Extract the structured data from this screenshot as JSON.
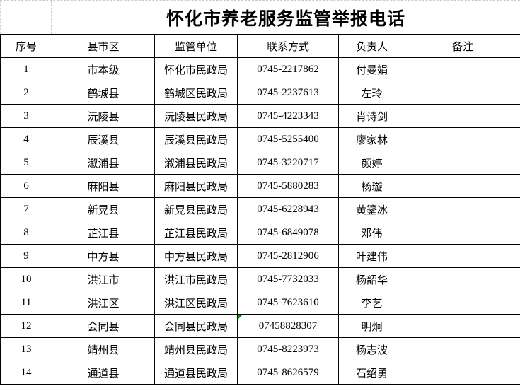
{
  "title": "怀化市养老服务监管举报电话",
  "columns": [
    "序号",
    "县市区",
    "监管单位",
    "联系方式",
    "负责人",
    "备注"
  ],
  "rows": [
    {
      "seq": "1",
      "district": "市本级",
      "agency": "怀化市民政局",
      "phone": "0745-2217862",
      "contact": "付曼娟",
      "note": ""
    },
    {
      "seq": "2",
      "district": "鹤城县",
      "agency": "鹤城区民政局",
      "phone": "0745-2237613",
      "contact": "左玲",
      "note": ""
    },
    {
      "seq": "3",
      "district": "沅陵县",
      "agency": "沅陵县民政局",
      "phone": "0745-4223343",
      "contact": "肖诗剑",
      "note": ""
    },
    {
      "seq": "4",
      "district": "辰溪县",
      "agency": "辰溪县民政局",
      "phone": "0745-5255400",
      "contact": "廖家林",
      "note": ""
    },
    {
      "seq": "5",
      "district": "溆浦县",
      "agency": "溆浦县民政局",
      "phone": "0745-3220717",
      "contact": "颜婷",
      "note": ""
    },
    {
      "seq": "6",
      "district": "麻阳县",
      "agency": "麻阳县民政局",
      "phone": "0745-5880283",
      "contact": "杨璇",
      "note": ""
    },
    {
      "seq": "7",
      "district": "新晃县",
      "agency": "新晃县民政局",
      "phone": "0745-6228943",
      "contact": "黄鎏冰",
      "note": ""
    },
    {
      "seq": "8",
      "district": "芷江县",
      "agency": "芷江县民政局",
      "phone": "0745-6849078",
      "contact": "邓伟",
      "note": ""
    },
    {
      "seq": "9",
      "district": "中方县",
      "agency": "中方县民政局",
      "phone": "0745-2812906",
      "contact": "叶建伟",
      "note": ""
    },
    {
      "seq": "10",
      "district": "洪江市",
      "agency": "洪江市民政局",
      "phone": "0745-7732033",
      "contact": "杨韶华",
      "note": ""
    },
    {
      "seq": "11",
      "district": "洪江区",
      "agency": "洪江区民政局",
      "phone": "0745-7623610",
      "contact": "李艺",
      "note": ""
    },
    {
      "seq": "12",
      "district": "会同县",
      "agency": "会同县民政局",
      "phone": "07458828307",
      "contact": "明炯",
      "note": "",
      "error_indicator": true
    },
    {
      "seq": "13",
      "district": "靖州县",
      "agency": "靖州县民政局",
      "phone": "0745-8223973",
      "contact": "杨志波",
      "note": ""
    },
    {
      "seq": "14",
      "district": "通道县",
      "agency": "通道县民政局",
      "phone": "0745-8626579",
      "contact": "石绍勇",
      "note": ""
    }
  ],
  "colors": {
    "border": "#000000",
    "gridline": "#c9c9c9",
    "error_indicator": "#0a8f08"
  }
}
